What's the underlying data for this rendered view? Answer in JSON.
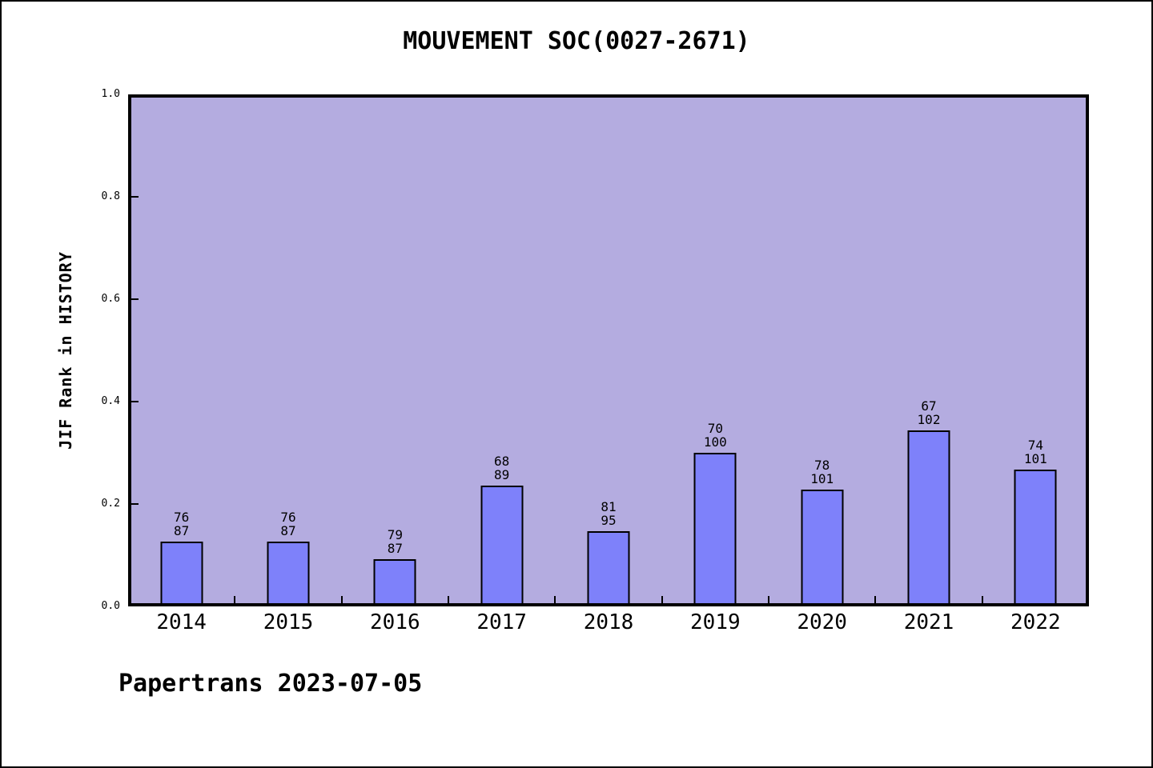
{
  "title": "MOUVEMENT SOC(0027-2671)",
  "footer": "Papertrans 2023-07-05",
  "colors": {
    "bar_fill": "#7E81FA",
    "bar_border": "#000000",
    "plot_background": "#B4ACE0",
    "axis": "#000000",
    "page_background": "#FFFFFF",
    "text": "#000000"
  },
  "chart_data": {
    "type": "bar",
    "title": "MOUVEMENT SOC(0027-2671)",
    "xlabel": "",
    "ylabel": "JIF Rank in HISTORY",
    "ylim": [
      0.0,
      1.0
    ],
    "ytick_labels": [
      "0.0",
      "0.2",
      "0.4",
      "0.6",
      "0.8",
      "1.0"
    ],
    "ytick_values": [
      0.0,
      0.2,
      0.4,
      0.6,
      0.8,
      1.0
    ],
    "grid": "off",
    "legend": "none",
    "categories": [
      "2014",
      "2015",
      "2016",
      "2017",
      "2018",
      "2019",
      "2020",
      "2021",
      "2022"
    ],
    "values": [
      0.1264,
      0.1264,
      0.092,
      0.236,
      0.1474,
      0.3,
      0.2277,
      0.3431,
      0.2673
    ],
    "bar_label_line1": [
      "76",
      "76",
      "79",
      "68",
      "81",
      "70",
      "78",
      "67",
      "74"
    ],
    "bar_label_line2": [
      "87",
      "87",
      "87",
      "89",
      "95",
      "100",
      "101",
      "102",
      "101"
    ]
  }
}
